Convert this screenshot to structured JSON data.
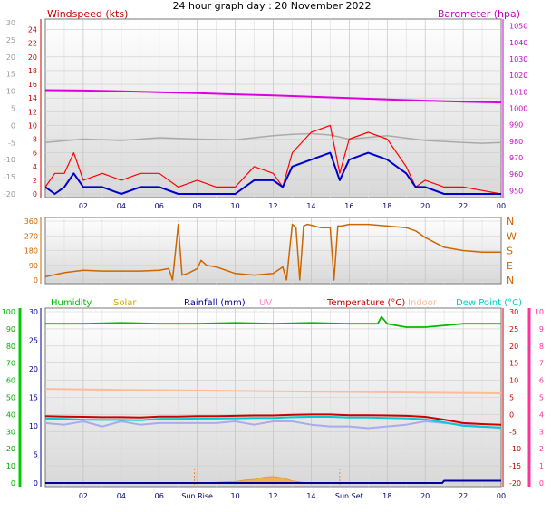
{
  "page_title": "24 hour graph day : 20 November 2022",
  "colors": {
    "windspeed": "#ff0000",
    "windavg": "#0000cc",
    "gust_gray": "#aaaaaa",
    "barometer": "#dd00dd",
    "direction": "#cc6600",
    "humidity": "#00bb00",
    "solar": "#ccaa00",
    "rainfall": "#000099",
    "uv": "#ff88cc",
    "temperature": "#cc0000",
    "indoor": "#ffbb99",
    "dewpoint": "#00cccc",
    "humidity_light": "#aaaaee"
  },
  "chart_data": [
    {
      "type": "line",
      "title": "24 hour graph day : 20 November 2022",
      "left_axis_label": "Windspeed (kts)",
      "right_axis_label": "Barometer (hpa)",
      "x_ticks": [
        "02",
        "04",
        "06",
        "08",
        "10",
        "12",
        "14",
        "16",
        "18",
        "20",
        "22",
        "00"
      ],
      "outer_left_ticks": [
        "30",
        "25",
        "20",
        "15",
        "10",
        "5",
        "0",
        "-5",
        "-10",
        "-15",
        "-20"
      ],
      "left_ticks": [
        "0",
        "2",
        "4",
        "6",
        "8",
        "10",
        "12",
        "14",
        "16",
        "18",
        "20",
        "22",
        "24"
      ],
      "right_ticks": [
        "950",
        "960",
        "970",
        "980",
        "990",
        "1000",
        "1010",
        "1020",
        "1030",
        "1040",
        "1050"
      ],
      "ylim_left": [
        0,
        25
      ],
      "ylim_right": [
        948,
        1052
      ],
      "xlim": [
        0,
        24
      ],
      "series": [
        {
          "name": "Barometer (hpa)",
          "axis": "right",
          "x": [
            0,
            2,
            4,
            6,
            8,
            10,
            12,
            14,
            16,
            18,
            20,
            22,
            24
          ],
          "values": [
            1011,
            1010.8,
            1010.3,
            1009.8,
            1009.2,
            1008.5,
            1007.8,
            1007,
            1006.2,
            1005.4,
            1004.6,
            1004,
            1003.5
          ]
        },
        {
          "x": [
            0,
            0.5,
            1,
            1.5,
            2,
            3,
            4,
            5,
            6,
            7,
            8,
            9,
            10,
            11,
            12,
            12.5,
            13,
            14,
            15,
            15.5,
            16,
            17,
            18,
            19,
            19.5,
            20,
            21,
            22,
            23,
            24
          ],
          "values": [
            1,
            3,
            3,
            6,
            2,
            3,
            2,
            3,
            3,
            1,
            2,
            1,
            1,
            4,
            3,
            1,
            6,
            9,
            10,
            3,
            8,
            9,
            8,
            4,
            1,
            2,
            1,
            1,
            0.5,
            0
          ]
        },
        {
          "x": [
            0,
            0.5,
            1,
            1.5,
            2,
            3,
            4,
            5,
            6,
            7,
            8,
            9,
            10,
            11,
            12,
            12.5,
            13,
            14,
            15,
            15.5,
            16,
            17,
            18,
            19,
            19.5,
            20,
            21,
            22,
            23,
            24
          ],
          "values": [
            1,
            0,
            1,
            3,
            1,
            1,
            0,
            1,
            1,
            0,
            0,
            0,
            0,
            2,
            2,
            1,
            4,
            5,
            6,
            2,
            5,
            6,
            5,
            3,
            1,
            1,
            0,
            0,
            0,
            0
          ]
        },
        {
          "x": [
            0,
            2,
            4,
            6,
            8,
            10,
            12,
            13,
            14,
            15,
            16,
            18,
            20,
            22,
            23,
            24
          ],
          "values": [
            7.5,
            8,
            7.8,
            8.2,
            8,
            7.9,
            8.5,
            8.7,
            8.8,
            8.6,
            8,
            8.5,
            7.8,
            7.5,
            7.4,
            7.5
          ]
        }
      ]
    },
    {
      "type": "line",
      "left_ticks": [
        "360",
        "270",
        "180",
        "90",
        "0"
      ],
      "right_ticks": [
        "N",
        "W",
        "S",
        "E",
        "N"
      ],
      "ylim": [
        0,
        360
      ],
      "xlim": [
        0,
        24
      ],
      "series": [
        {
          "x": [
            0,
            1,
            2,
            3,
            4,
            5,
            6,
            6.5,
            6.7,
            7,
            7.2,
            7.5,
            8,
            8.2,
            8.5,
            9,
            10,
            11,
            12,
            12.5,
            12.7,
            13,
            13.2,
            13.4,
            13.6,
            13.8,
            14,
            14.5,
            15,
            15.2,
            15.4,
            15.6,
            16,
            17,
            18,
            19,
            19.5,
            20,
            21,
            22,
            23,
            24
          ],
          "values": [
            20,
            45,
            60,
            55,
            55,
            55,
            60,
            70,
            0,
            340,
            30,
            40,
            70,
            120,
            90,
            80,
            40,
            30,
            40,
            80,
            0,
            340,
            320,
            0,
            330,
            340,
            335,
            320,
            320,
            0,
            330,
            330,
            340,
            340,
            330,
            320,
            300,
            260,
            200,
            180,
            170,
            170
          ]
        }
      ]
    },
    {
      "type": "line",
      "legend": [
        "Humidity",
        "Solar",
        "Rainfall (mm)",
        "UV",
        "Temperature (°C)",
        "Indoor",
        "Dew Point (°C)"
      ],
      "x_ticks": [
        "02",
        "04",
        "06",
        "Sun Rise",
        "10",
        "12",
        "14",
        "Sun Set",
        "18",
        "20",
        "22",
        "00"
      ],
      "outer_left_ticks": [
        "100",
        "90",
        "80",
        "70",
        "60",
        "50",
        "40",
        "30",
        "20",
        "10",
        "0"
      ],
      "left_ticks": [
        "0",
        "5",
        "10",
        "15",
        "20",
        "25",
        "30"
      ],
      "right_ticks": [
        "-20",
        "-15",
        "-10",
        "-5",
        "0",
        "5",
        "10",
        "15",
        "20",
        "25",
        "30"
      ],
      "far_right_ticks": [
        "0",
        "1",
        "2",
        "3",
        "4",
        "5",
        "6",
        "7",
        "8",
        "9",
        "10"
      ],
      "ylim_temp": [
        -20,
        30
      ],
      "xlim": [
        0,
        24
      ],
      "series": [
        {
          "name": "Humidity",
          "axis": "humidity",
          "x": [
            0,
            2,
            4,
            6,
            8,
            10,
            12,
            14,
            16,
            17,
            17.5,
            17.7,
            18,
            19,
            20,
            21,
            22,
            24
          ],
          "values": [
            93,
            93,
            93.5,
            93,
            93,
            93.5,
            93,
            93.5,
            93,
            93,
            93,
            97,
            93,
            91,
            91,
            92,
            93,
            93
          ]
        },
        {
          "name": "Temperature (°C)",
          "axis": "temp",
          "x": [
            0,
            1,
            2,
            3,
            4,
            5,
            6,
            7,
            8,
            9,
            10,
            11,
            12,
            13,
            14,
            15,
            16,
            17,
            18,
            19,
            20,
            21,
            22,
            23,
            24
          ],
          "values": [
            -0.5,
            -0.6,
            -0.7,
            -0.8,
            -0.8,
            -0.9,
            -0.6,
            -0.6,
            -0.5,
            -0.5,
            -0.4,
            -0.3,
            -0.3,
            -0.1,
            0,
            0,
            -0.2,
            -0.2,
            -0.3,
            -0.4,
            -0.7,
            -1.5,
            -2.5,
            -2.8,
            -3
          ]
        },
        {
          "name": "Dew Point (°C)",
          "axis": "temp",
          "x": [
            0,
            1,
            2,
            3,
            4,
            5,
            6,
            7,
            8,
            9,
            10,
            11,
            12,
            13,
            14,
            15,
            16,
            17,
            18,
            19,
            20,
            21,
            22,
            23,
            24
          ],
          "values": [
            -1.2,
            -1.3,
            -1.5,
            -1.6,
            -1.6,
            -1.7,
            -1.3,
            -1.3,
            -1.2,
            -1.2,
            -1.1,
            -1,
            -1,
            -0.8,
            -0.7,
            -0.7,
            -0.9,
            -0.9,
            -1,
            -1.1,
            -1.4,
            -2.3,
            -3.3,
            -3.6,
            -3.8
          ]
        },
        {
          "name": "Indoor",
          "axis": "temp",
          "x": [
            0,
            4,
            8,
            12,
            16,
            20,
            24
          ],
          "values": [
            7.5,
            7.2,
            7,
            6.8,
            6.6,
            6.4,
            6.2
          ]
        },
        {
          "axis": "temp",
          "x": [
            0,
            1,
            2,
            3,
            4,
            5,
            6,
            7,
            8,
            9,
            10,
            11,
            12,
            13,
            14,
            15,
            16,
            17,
            18,
            19,
            20,
            21,
            22,
            23,
            24
          ],
          "values": [
            -2.5,
            -3,
            -2,
            -3.5,
            -2,
            -3,
            -2.5,
            -2.5,
            -2.5,
            -2.5,
            -2,
            -3,
            -2,
            -2,
            -3,
            -3.5,
            -3.5,
            -4,
            -3.5,
            -3,
            -2,
            -2.5,
            -3,
            -3.5,
            -4
          ]
        },
        {
          "name": "Rainfall (mm)",
          "axis": "rain",
          "x": [
            0,
            20.9,
            21,
            24
          ],
          "values": [
            0,
            0,
            0.4,
            0.4
          ]
        },
        {
          "name": "Solar",
          "axis": "solar",
          "x": [
            8,
            9,
            10,
            10.5,
            11,
            11.5,
            12,
            12.5,
            13,
            13.5,
            14
          ],
          "values": [
            0,
            0.1,
            0.2,
            0.4,
            0.5,
            0.8,
            0.9,
            0.7,
            0.3,
            0.1,
            0
          ]
        }
      ]
    }
  ]
}
